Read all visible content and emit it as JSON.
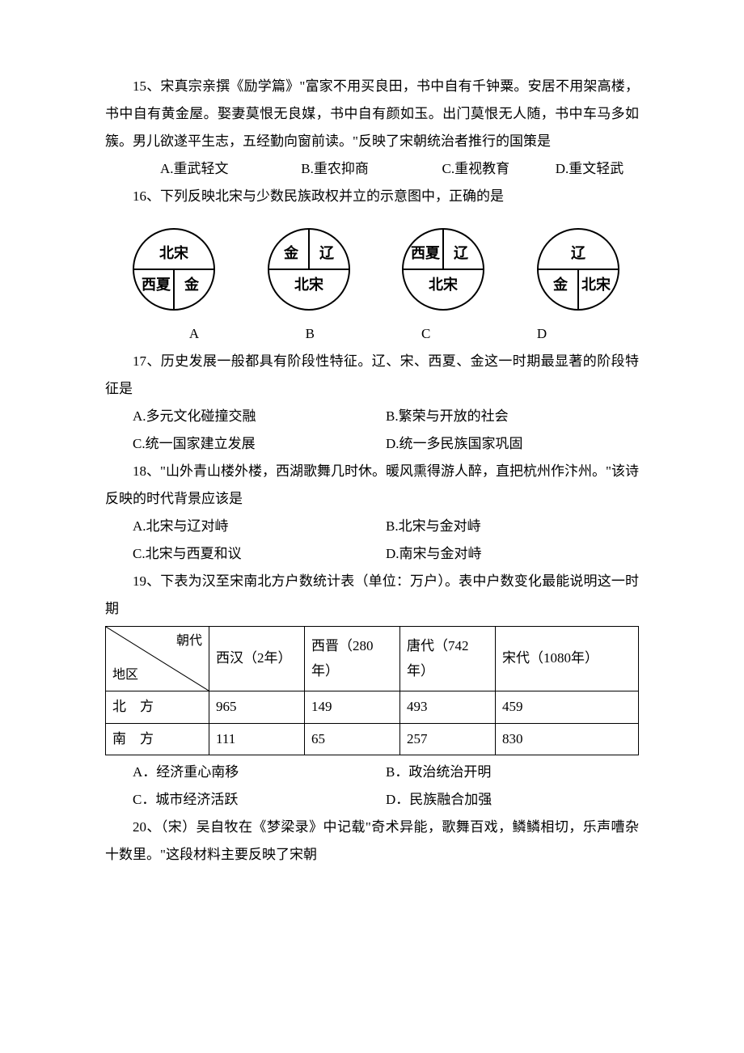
{
  "q15": {
    "text": "15、宋真宗亲撰《励学篇》\"富家不用买良田，书中自有千钟粟。安居不用架高楼，书中自有黄金屋。娶妻莫恨无良媒，书中自有颜如玉。出门莫恨无人随，书中车马多如簇。男儿欲遂平生志，五经勤向窗前读。\"反映了宋朝统治者推行的国策是",
    "opts": {
      "a": "A.重武轻文",
      "b": "B.重农抑商",
      "c": "C.重视教育",
      "d": "D.重文轻武"
    }
  },
  "q16": {
    "text": "16、下列反映北宋与少数民族政权并立的示意图中，正确的是",
    "labels": {
      "a": "A",
      "b": "B",
      "c": "C",
      "d": "D"
    }
  },
  "q17": {
    "text": "17、历史发展一般都具有阶段性特征。辽、宋、西夏、金这一时期最显著的阶段特征是",
    "opts": {
      "a": "A.多元文化碰撞交融",
      "b": "B.繁荣与开放的社会",
      "c": "C.统一国家建立发展",
      "d": "D.统一多民族国家巩固"
    }
  },
  "q18": {
    "text": "18、\"山外青山楼外楼，西湖歌舞几时休。暖风熏得游人醉，直把杭州作汴州。\"该诗反映的时代背景应该是",
    "opts": {
      "a": "A.北宋与辽对峙",
      "b": "B.北宋与金对峙",
      "c": "C.北宋与西夏和议",
      "d": "D.南宋与金对峙"
    }
  },
  "q19": {
    "text": "19、下表为汉至宋南北方户数统计表（单位：万户）。表中户数变化最能说明这一时期",
    "opts": {
      "a": "A．经济重心南移",
      "b": "B．政治统治开明",
      "c": "C．城市经济活跃",
      "d": "D．民族融合加强"
    },
    "table": {
      "diag_top": "朝代",
      "diag_bottom": "地区",
      "headers": [
        "西汉（2年）",
        "西晋（280年）",
        "唐代（742年）",
        "宋代（1080年）"
      ],
      "rows": [
        {
          "label": "北　方",
          "vals": [
            "965",
            "149",
            "493",
            "459"
          ]
        },
        {
          "label": "南　方",
          "vals": [
            "111",
            "65",
            "257",
            "830"
          ]
        }
      ],
      "col_widths": [
        "128px",
        "118px",
        "118px",
        "118px",
        "auto"
      ]
    }
  },
  "q20": {
    "text": "20、（宋）吴自牧在《梦梁录》中记载\"奇术异能，歌舞百戏，鳞鳞相切，乐声嘈杂十数里。\"这段材料主要反映了宋朝"
  },
  "diagrams": {
    "stroke": "#000000",
    "stroke_width": 2,
    "radius": 50,
    "items": [
      {
        "top": "北宋",
        "bl": "西夏",
        "br": "金"
      },
      {
        "tl": "金",
        "tr": "辽",
        "bottom": "北宋"
      },
      {
        "tl": "西夏",
        "tr": "辽",
        "bottom": "北宋"
      },
      {
        "top": "辽",
        "bl": "金",
        "br": "北宋"
      }
    ]
  }
}
